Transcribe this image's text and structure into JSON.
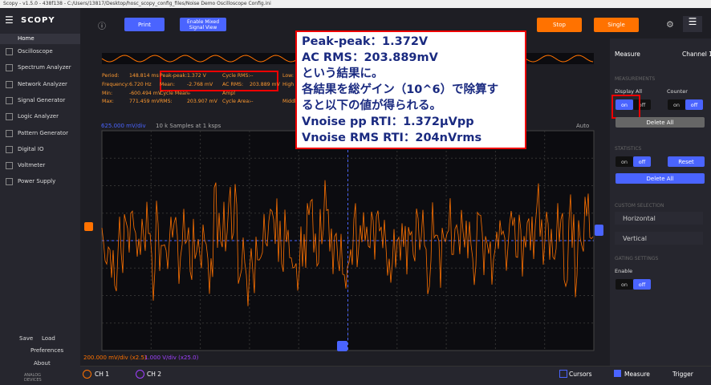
{
  "window_title": "Scopy - v1.5.0 - 438f138 - C:/Users/13817/Desktop/hosc_scopy_config_files/Noise Demo Oscilloscope Config.ini",
  "app_name": "SCOPY",
  "sidebar": {
    "home": "Home",
    "items": [
      "Oscilloscope",
      "Spectrum Analyzer",
      "Network Analyzer",
      "Signal Generator",
      "Logic Analyzer",
      "Pattern Generator",
      "Digital IO",
      "Voltmeter",
      "Power Supply"
    ],
    "save": "Save",
    "load": "Load",
    "preferences": "Preferences",
    "about": "About",
    "brand": "ANALOG DEVICES"
  },
  "toolbar": {
    "print": "Print",
    "mixed": "Enable Mixed Signal View",
    "stop": "Stop",
    "single": "Single"
  },
  "measurements": [
    [
      [
        "Period:",
        "148.814 ms"
      ],
      [
        "Peak-peak:",
        "1.372 V"
      ],
      [
        "Cycle RMS:",
        "--"
      ],
      [
        "Low:"
      ]
    ],
    [
      [
        "Frequency:",
        "6.720 Hz"
      ],
      [
        "Mean:",
        "-2.768 mV"
      ],
      [
        "AC RMS:",
        "203.889 mV"
      ],
      [
        "High"
      ]
    ],
    [
      [
        "Min:",
        "-600.494 mV"
      ],
      [
        "Cycle Mean:",
        "--"
      ],
      [
        "Ampl"
      ]
    ],
    [
      [
        "Max:",
        "771.459 mV"
      ],
      [
        "RMS:",
        "203.907 mV"
      ],
      [
        "Cycle Area:",
        "--"
      ],
      [
        "Middl"
      ]
    ]
  ],
  "plot": {
    "vdiv": "625.000 mV/div",
    "samples": "10 k Samples at 1 ksps",
    "mode": "Auto",
    "ch1_scale": "200.000 mV/div (x2.5)",
    "ch2_scale": "1.000 V/div (x25.0)"
  },
  "annotation": [
    "Peak-peak：1.372V",
    "AC RMS：203.889mV",
    "という結果に。",
    "各結果を総ゲイン（10^6）で除算す",
    "ると以下の値が得られる。",
    "Vnoise pp RTI：1.372μVpp",
    "Vnoise RMS RTI：204nVrms"
  ],
  "panel": {
    "title": "Measure",
    "channel": "Channel 1",
    "measurements": "MEASUREMENTS",
    "display_all": "Display All",
    "counter": "Counter",
    "display_on": "on",
    "display_off": "off",
    "counter_on": "on",
    "counter_off": "off",
    "delete_all": "Delete All",
    "statistics": "STATISTICS",
    "stats_on": "on",
    "stats_off": "off",
    "reset": "Reset",
    "delete_all_2": "Delete All",
    "custom": "CUSTOM SELECTION",
    "horizontal": "Horizontal",
    "vertical": "Vertical",
    "gating": "GATING SETTINGS",
    "enable": "Enable",
    "gate_on": "on",
    "gate_off": "off"
  },
  "bottom": {
    "ch1": "CH 1",
    "ch2": "CH 2",
    "cursors": "Cursors",
    "measure": "Measure",
    "trigger": "Trigger"
  }
}
